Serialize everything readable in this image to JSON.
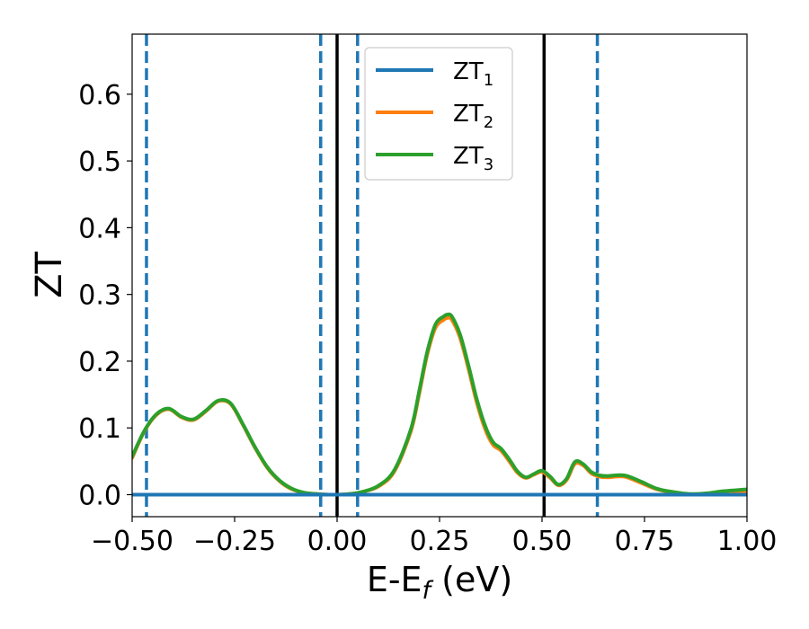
{
  "chart_data": {
    "type": "line",
    "xlabel": {
      "main": "E-E",
      "sub": "f",
      "unit": " (eV)"
    },
    "ylabel": "ZT",
    "xlim": [
      -0.5,
      1.0
    ],
    "ylim": [
      -0.033,
      0.69
    ],
    "xticks": [
      -0.5,
      -0.25,
      0.0,
      0.25,
      0.5,
      0.75,
      1.0
    ],
    "xtick_labels": [
      "−0.50",
      "−0.25",
      "0.00",
      "0.25",
      "0.50",
      "0.75",
      "1.00"
    ],
    "yticks": [
      0.0,
      0.1,
      0.2,
      0.3,
      0.4,
      0.5,
      0.6
    ],
    "ytick_labels": [
      "0.0",
      "0.1",
      "0.2",
      "0.3",
      "0.4",
      "0.5",
      "0.6"
    ],
    "legend_position": "top-center",
    "grid": false,
    "vlines_dashed": [
      -0.465,
      -0.04,
      0.05,
      0.635
    ],
    "vlines_solid": [
      0.0,
      0.505
    ],
    "series": [
      {
        "name": "ZT",
        "sub": "1",
        "color": "#1f77b4",
        "x": [
          -0.5,
          1.0
        ],
        "y": [
          0.0,
          0.0
        ]
      },
      {
        "name": "ZT",
        "sub": "2",
        "color": "#ff7f0e",
        "x": [
          -0.5,
          -0.47,
          -0.44,
          -0.41,
          -0.38,
          -0.35,
          -0.32,
          -0.29,
          -0.26,
          -0.23,
          -0.2,
          -0.17,
          -0.14,
          -0.11,
          -0.08,
          -0.05,
          -0.02,
          0.0,
          0.03,
          0.06,
          0.1,
          0.14,
          0.18,
          0.2,
          0.22,
          0.24,
          0.26,
          0.27,
          0.28,
          0.3,
          0.32,
          0.34,
          0.36,
          0.38,
          0.4,
          0.42,
          0.44,
          0.46,
          0.48,
          0.5,
          0.52,
          0.54,
          0.56,
          0.58,
          0.6,
          0.62,
          0.64,
          0.66,
          0.7,
          0.74,
          0.78,
          0.82,
          0.86,
          0.9,
          0.94,
          0.98,
          1.0
        ],
        "y": [
          0.055,
          0.095,
          0.12,
          0.128,
          0.116,
          0.112,
          0.125,
          0.14,
          0.136,
          0.105,
          0.07,
          0.04,
          0.02,
          0.008,
          0.003,
          0.001,
          0.0,
          0.0,
          0.001,
          0.004,
          0.012,
          0.035,
          0.095,
          0.15,
          0.21,
          0.25,
          0.262,
          0.265,
          0.262,
          0.235,
          0.19,
          0.14,
          0.1,
          0.075,
          0.066,
          0.05,
          0.033,
          0.025,
          0.03,
          0.034,
          0.025,
          0.014,
          0.022,
          0.046,
          0.044,
          0.032,
          0.027,
          0.026,
          0.027,
          0.018,
          0.008,
          0.003,
          0.0,
          0.001,
          0.003,
          0.003,
          0.004
        ]
      },
      {
        "name": "ZT",
        "sub": "3",
        "color": "#2ca02c",
        "x": [
          -0.5,
          -0.47,
          -0.44,
          -0.41,
          -0.38,
          -0.35,
          -0.32,
          -0.29,
          -0.26,
          -0.23,
          -0.2,
          -0.17,
          -0.14,
          -0.11,
          -0.08,
          -0.05,
          -0.02,
          0.0,
          0.03,
          0.06,
          0.1,
          0.14,
          0.18,
          0.2,
          0.22,
          0.24,
          0.26,
          0.27,
          0.28,
          0.3,
          0.32,
          0.34,
          0.36,
          0.38,
          0.4,
          0.42,
          0.44,
          0.46,
          0.48,
          0.5,
          0.52,
          0.54,
          0.56,
          0.58,
          0.6,
          0.62,
          0.64,
          0.66,
          0.7,
          0.74,
          0.78,
          0.82,
          0.86,
          0.9,
          0.94,
          0.98,
          1.0
        ],
        "y": [
          0.057,
          0.096,
          0.121,
          0.129,
          0.117,
          0.113,
          0.126,
          0.141,
          0.137,
          0.106,
          0.071,
          0.041,
          0.021,
          0.009,
          0.003,
          0.001,
          0.0,
          0.0,
          0.001,
          0.004,
          0.013,
          0.037,
          0.098,
          0.154,
          0.214,
          0.255,
          0.267,
          0.27,
          0.267,
          0.24,
          0.195,
          0.145,
          0.105,
          0.079,
          0.069,
          0.053,
          0.035,
          0.026,
          0.031,
          0.036,
          0.027,
          0.015,
          0.024,
          0.049,
          0.046,
          0.034,
          0.029,
          0.028,
          0.029,
          0.02,
          0.009,
          0.004,
          0.001,
          0.002,
          0.005,
          0.007,
          0.008
        ]
      }
    ]
  }
}
